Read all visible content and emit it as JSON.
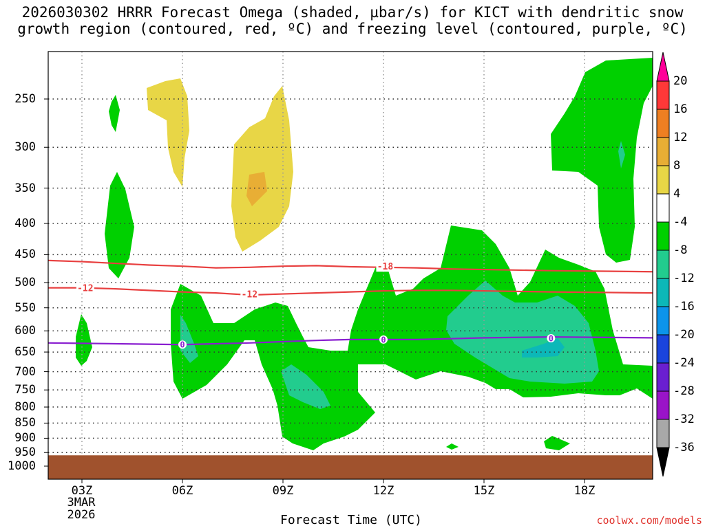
{
  "chart_data": {
    "type": "heatmap",
    "title_line1": "2026030302 HRRR Forecast Omega (shaded, µbar/s) for KICT with dendritic snow",
    "title_line2": "growth region (contoured, red, ºC) and freezing level (contoured, purple, ºC)",
    "xlabel": "Forecast Time (UTC)",
    "x_ticks": [
      {
        "label": "03Z",
        "hour": 3
      },
      {
        "label": "06Z",
        "hour": 6
      },
      {
        "label": "09Z",
        "hour": 9
      },
      {
        "label": "12Z",
        "hour": 12
      },
      {
        "label": "15Z",
        "hour": 15
      },
      {
        "label": "18Z",
        "hour": 18
      }
    ],
    "x_range_hours": [
      2,
      20
    ],
    "date_label_1": "3MAR",
    "date_label_2": "2026",
    "y_ticks_hpa": [
      250,
      300,
      350,
      400,
      450,
      500,
      550,
      600,
      650,
      700,
      750,
      800,
      850,
      900,
      950,
      1000
    ],
    "y_range_hpa": [
      200,
      1030
    ],
    "colorbar": {
      "labels": [
        "20",
        "16",
        "12",
        "8",
        "4",
        "-4",
        "-8",
        "-12",
        "-16",
        "-20",
        "-24",
        "-28",
        "-32",
        "-36"
      ],
      "colors": [
        "#ff0099",
        "#ff3838",
        "#ee7f22",
        "#e8ae35",
        "#e8d646",
        "#ffffff",
        "#00d000",
        "#22cc8e",
        "#0cb8b8",
        "#0c94ea",
        "#1a44dd",
        "#6a1fd0",
        "#9a14c8",
        "#a8a8a8",
        "#000000"
      ]
    },
    "omega_regions": [
      {
        "level": "4 to 8",
        "color": "#e8d646",
        "description": "weak upward motion near 06Z and 08Z aloft"
      },
      {
        "level": "8 to 12",
        "color": "#e8ae35",
        "description": "core near 08Z around 350 hPa"
      },
      {
        "level": "-8 to -4",
        "color": "#00d000",
        "description": "sinking motion regions"
      },
      {
        "level": "-12 to -8",
        "color": "#22cc8e",
        "description": "stronger sinking"
      },
      {
        "level": "-16 to -12",
        "color": "#0cb8b8",
        "description": "strongest sinking near 17Z"
      }
    ],
    "contours": [
      {
        "name": "dendritic growth -18",
        "label": "-18",
        "color": "#e84040",
        "levels_hpa": [
          460,
          462,
          465,
          468,
          470,
          473,
          472,
          470,
          469,
          471,
          472,
          473,
          475,
          476
        ],
        "hours": [
          2,
          3,
          4,
          5,
          6,
          7,
          8,
          9,
          10,
          11,
          12,
          13,
          14,
          15
        ]
      },
      {
        "name": "dendritic growth -12",
        "label": "-12",
        "color": "#e84040",
        "levels_hpa": [
          510,
          510,
          512,
          515,
          518,
          520,
          524,
          522,
          520,
          518,
          516,
          515,
          515,
          516
        ],
        "hours": [
          2,
          3,
          4,
          5,
          6,
          7,
          8,
          9,
          10,
          11,
          12,
          13,
          14,
          15
        ]
      },
      {
        "name": "freezing level 0",
        "label": "0",
        "color": "#8a1fd0",
        "levels_hpa": [
          628,
          629,
          630,
          631,
          632,
          630,
          628,
          625,
          622,
          620,
          620,
          620,
          618,
          616
        ],
        "hours": [
          2,
          3,
          4,
          5,
          6,
          7,
          8,
          9,
          10,
          11,
          12,
          13,
          14,
          15
        ]
      }
    ],
    "surface_color": "#a0522d"
  },
  "credit": "coolwx.com/models"
}
